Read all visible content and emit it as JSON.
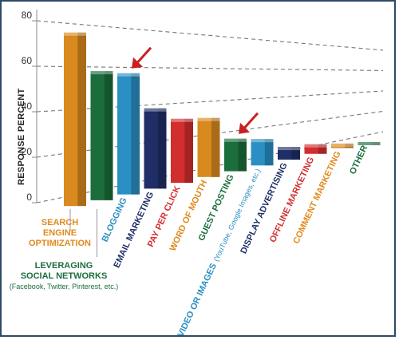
{
  "chart_data": {
    "type": "bar",
    "title": "",
    "xlabel": "",
    "ylabel": "RESPONSE PERCENT",
    "ylim": [
      0,
      80
    ],
    "yticks": [
      "0",
      "20",
      "40",
      "60",
      "80"
    ],
    "grid": "dashed",
    "categories": [
      "SEARCH ENGINE OPTIMIZATION",
      "LEVERAGING SOCIAL NETWORKS",
      "BLOGGING",
      "EMAIL MARKETING",
      "PAY PER CLICK",
      "WORD OF MOUTH",
      "GUEST POSTING",
      "VIDEO OR IMAGES",
      "DISPLAY ADVERTISING",
      "OFFLINE MARKETING",
      "COMMENT MARKETING",
      "OTHER"
    ],
    "category_notes": {
      "LEVERAGING SOCIAL NETWORKS": "(Facebook, Twitter, Pinterest, etc.)",
      "VIDEO OR IMAGES": "(YouTube, Google Images, etc.)"
    },
    "values": [
      76,
      58,
      57,
      38,
      31,
      30,
      15,
      12,
      3,
      1,
      -3,
      -7
    ],
    "colors": [
      "#d98a1e",
      "#1b6e3c",
      "#2a8fc3",
      "#1f2e66",
      "#d32e2e",
      "#d98a1e",
      "#1b6e3c",
      "#2a8fc3",
      "#1f2e66",
      "#d32e2e",
      "#d98a1e",
      "#1b6e3c"
    ],
    "label_colors": [
      "#e08a1e",
      "#1b6e3c",
      "#2a8fc3",
      "#1f2e66",
      "#d32e2e",
      "#e08a1e",
      "#1b6e3c",
      "#2a8fc3",
      "#1f2e66",
      "#d32e2e",
      "#e08a1e",
      "#1b6e3c"
    ],
    "highlight_arrows": [
      "BLOGGING",
      "GUEST POSTING"
    ]
  }
}
